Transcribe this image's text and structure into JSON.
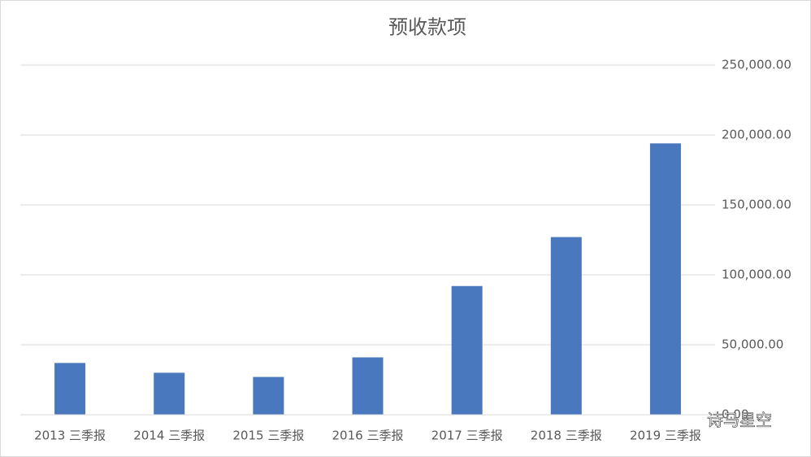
{
  "chart_data": {
    "type": "bar",
    "title": "预收款项",
    "categories": [
      "2013 三季报",
      "2014 三季报",
      "2015 三季报",
      "2016 三季报",
      "2017 三季报",
      "2018 三季报",
      "2019 三季报"
    ],
    "values": [
      37000,
      30000,
      27000,
      41000,
      92000,
      127000,
      194000
    ],
    "color": "#4a78bf",
    "ylim": [
      0,
      250000
    ],
    "yticks": [
      {
        "value": 0,
        "label": "0.00"
      },
      {
        "value": 50000,
        "label": "50,000.00"
      },
      {
        "value": 100000,
        "label": "100,000.00"
      },
      {
        "value": 150000,
        "label": "150,000.00"
      },
      {
        "value": 200000,
        "label": "200,000.00"
      },
      {
        "value": 250000,
        "label": "250,000.00"
      }
    ],
    "grid": true,
    "axis_side": "right",
    "watermark": "诗马星空"
  }
}
